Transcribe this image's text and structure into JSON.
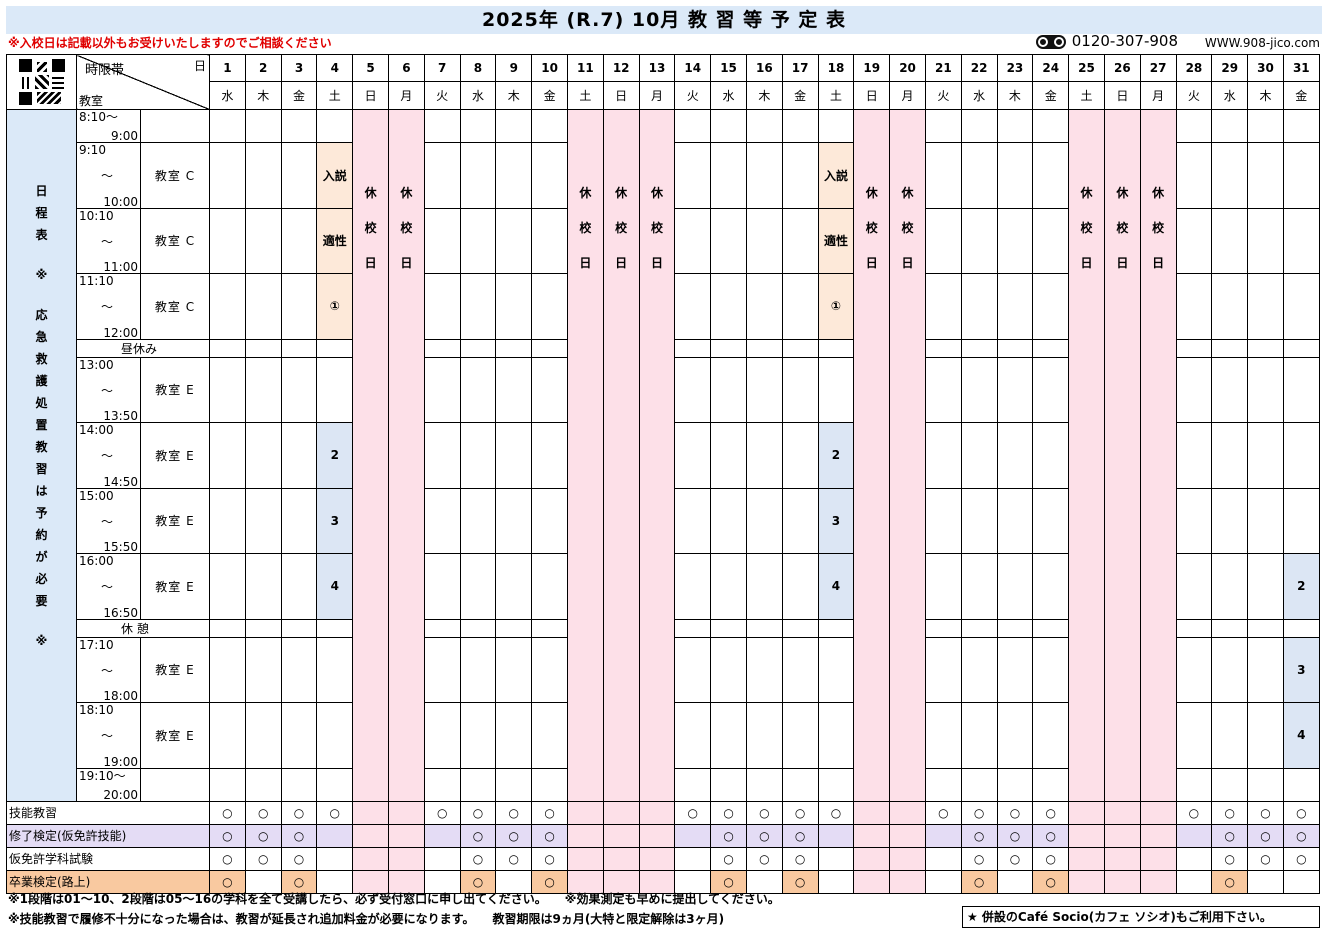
{
  "title": "2025年 (R.7) 10月 教 習 等 予 定 表",
  "notice": "※入校日は記載以外もお受けいたしますのでご相談ください",
  "phone": "0120-307-908",
  "website": "WWW.908-jico.com",
  "header": {
    "time_label": "時限帯",
    "day_label": "日",
    "room_label": "教室"
  },
  "sidebar": [
    "日",
    "程",
    "表",
    "",
    "※",
    "",
    "応",
    "急",
    "救",
    "護",
    "処",
    "置",
    "教",
    "習",
    "は",
    "予",
    "約",
    "が",
    "必",
    "要",
    "",
    "※"
  ],
  "days": [
    {
      "d": "1",
      "w": "水",
      "closed": false
    },
    {
      "d": "2",
      "w": "木",
      "closed": false
    },
    {
      "d": "3",
      "w": "金",
      "closed": false
    },
    {
      "d": "4",
      "w": "土",
      "closed": false
    },
    {
      "d": "5",
      "w": "日",
      "closed": true
    },
    {
      "d": "6",
      "w": "月",
      "closed": true
    },
    {
      "d": "7",
      "w": "火",
      "closed": false
    },
    {
      "d": "8",
      "w": "水",
      "closed": false
    },
    {
      "d": "9",
      "w": "木",
      "closed": false
    },
    {
      "d": "10",
      "w": "金",
      "closed": false
    },
    {
      "d": "11",
      "w": "土",
      "closed": true
    },
    {
      "d": "12",
      "w": "日",
      "closed": true
    },
    {
      "d": "13",
      "w": "月",
      "closed": true
    },
    {
      "d": "14",
      "w": "火",
      "closed": false
    },
    {
      "d": "15",
      "w": "水",
      "closed": false
    },
    {
      "d": "16",
      "w": "木",
      "closed": false
    },
    {
      "d": "17",
      "w": "金",
      "closed": false
    },
    {
      "d": "18",
      "w": "土",
      "closed": false
    },
    {
      "d": "19",
      "w": "日",
      "closed": true
    },
    {
      "d": "20",
      "w": "月",
      "closed": true
    },
    {
      "d": "21",
      "w": "火",
      "closed": false
    },
    {
      "d": "22",
      "w": "水",
      "closed": false
    },
    {
      "d": "23",
      "w": "木",
      "closed": false
    },
    {
      "d": "24",
      "w": "金",
      "closed": false
    },
    {
      "d": "25",
      "w": "土",
      "closed": true
    },
    {
      "d": "26",
      "w": "日",
      "closed": true
    },
    {
      "d": "27",
      "w": "月",
      "closed": true
    },
    {
      "d": "28",
      "w": "火",
      "closed": false
    },
    {
      "d": "29",
      "w": "水",
      "closed": false
    },
    {
      "d": "30",
      "w": "木",
      "closed": false
    },
    {
      "d": "31",
      "w": "金",
      "closed": false
    }
  ],
  "closed_text": [
    "休",
    "校",
    "日"
  ],
  "periods": [
    {
      "start": "8:10～",
      "mid": "",
      "end": "9:00",
      "room": "",
      "type": "period",
      "single": true
    },
    {
      "start": "9:10",
      "mid": "～",
      "end": "10:00",
      "room": "教室 C",
      "type": "period"
    },
    {
      "start": "10:10",
      "mid": "～",
      "end": "11:00",
      "room": "教室 C",
      "type": "period"
    },
    {
      "start": "11:10",
      "mid": "～",
      "end": "12:00",
      "room": "教室 C",
      "type": "period"
    },
    {
      "label": "昼休み",
      "type": "break"
    },
    {
      "start": "13:00",
      "mid": "～",
      "end": "13:50",
      "room": "教室 E",
      "type": "period"
    },
    {
      "start": "14:00",
      "mid": "～",
      "end": "14:50",
      "room": "教室 E",
      "type": "period"
    },
    {
      "start": "15:00",
      "mid": "～",
      "end": "15:50",
      "room": "教室 E",
      "type": "period"
    },
    {
      "start": "16:00",
      "mid": "～",
      "end": "16:50",
      "room": "教室 E",
      "type": "period"
    },
    {
      "label": "休 憩",
      "type": "break"
    },
    {
      "start": "17:10",
      "mid": "～",
      "end": "18:00",
      "room": "教室 E",
      "type": "period"
    },
    {
      "start": "18:10",
      "mid": "～",
      "end": "19:00",
      "room": "教室 E",
      "type": "period"
    },
    {
      "start": "19:10～",
      "mid": "",
      "end": "20:00",
      "room": "",
      "type": "period",
      "single": true
    }
  ],
  "entries": [
    {
      "row": 1,
      "day": "4",
      "text": "入説",
      "color": "orange"
    },
    {
      "row": 2,
      "day": "4",
      "text": "適性",
      "color": "orange"
    },
    {
      "row": 3,
      "day": "4",
      "text": "①",
      "color": "orange"
    },
    {
      "row": 1,
      "day": "18",
      "text": "入説",
      "color": "orange"
    },
    {
      "row": 2,
      "day": "18",
      "text": "適性",
      "color": "orange"
    },
    {
      "row": 3,
      "day": "18",
      "text": "①",
      "color": "orange"
    },
    {
      "row": 6,
      "day": "4",
      "text": "2",
      "color": "blue"
    },
    {
      "row": 7,
      "day": "4",
      "text": "3",
      "color": "blue"
    },
    {
      "row": 8,
      "day": "4",
      "text": "4",
      "color": "blue"
    },
    {
      "row": 6,
      "day": "18",
      "text": "2",
      "color": "blue"
    },
    {
      "row": 7,
      "day": "18",
      "text": "3",
      "color": "blue"
    },
    {
      "row": 8,
      "day": "18",
      "text": "4",
      "color": "blue"
    },
    {
      "row": 8,
      "day": "31",
      "text": "2",
      "color": "blue"
    },
    {
      "row": 10,
      "day": "31",
      "text": "3",
      "color": "blue"
    },
    {
      "row": 11,
      "day": "31",
      "text": "4",
      "color": "blue"
    }
  ],
  "bottom_rows": [
    {
      "label": "技能教習",
      "style": "plain",
      "days": [
        "1",
        "2",
        "3",
        "4",
        "7",
        "8",
        "9",
        "10",
        "14",
        "15",
        "16",
        "17",
        "18",
        "21",
        "22",
        "23",
        "24",
        "28",
        "29",
        "30",
        "31"
      ]
    },
    {
      "label": "修了検定(仮免許技能)",
      "style": "lav",
      "days": [
        "1",
        "2",
        "3",
        "8",
        "9",
        "10",
        "15",
        "16",
        "17",
        "22",
        "23",
        "24",
        "29",
        "30",
        "31"
      ]
    },
    {
      "label": "仮免許学科試験",
      "style": "plain",
      "days": [
        "1",
        "2",
        "3",
        "8",
        "9",
        "10",
        "15",
        "16",
        "17",
        "22",
        "23",
        "24",
        "29",
        "30",
        "31"
      ]
    },
    {
      "label": "卒業検定(路上)",
      "style": "ora",
      "days": [
        "1",
        "3",
        "8",
        "10",
        "15",
        "17",
        "22",
        "24",
        "29"
      ]
    }
  ],
  "mark": "○",
  "footer": {
    "line1": "※1段階は01～10、2段階は05～16の学科を全て受講したら、必ず受付窓口に申し出てください。　　※効果測定も早めに提出してください。",
    "line2": "※技能教習で履修不十分になった場合は、教習が延長され追加料金が必要になります。　　教習期限は9ヵ月(大特と限定解除は3ヶ月)",
    "box": "★ 併設のCafé Socio(カフェ ソシオ)もご利用下さい。"
  }
}
